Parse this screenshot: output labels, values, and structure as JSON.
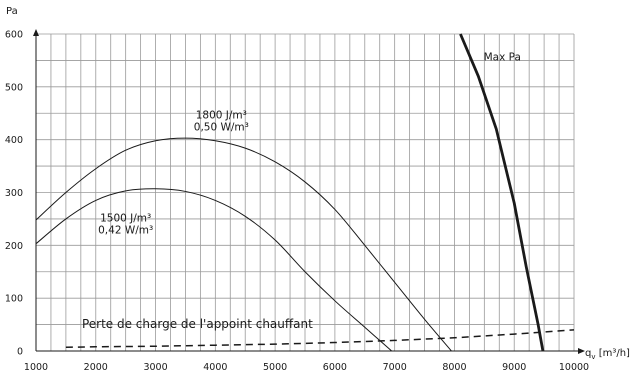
{
  "chart_data": {
    "type": "line",
    "title": "",
    "xlabel": "qv [m³/h]",
    "ylabel": "Pa",
    "xlim": [
      1000,
      10000
    ],
    "ylim": [
      0,
      600
    ],
    "x_ticks": [
      1000,
      2000,
      3000,
      4000,
      5000,
      6000,
      7000,
      8000,
      9000,
      10000
    ],
    "y_ticks": [
      0,
      100,
      200,
      300,
      400,
      500,
      600
    ],
    "grid": true,
    "series": [
      {
        "name": "",
        "style": "solid-thin",
        "x": [
          1000,
          1500,
          2000,
          2500,
          3000,
          3500,
          4000,
          4500,
          5000,
          5500,
          6000,
          6500,
          7000,
          7500,
          7950
        ],
        "y": [
          248,
          300,
          345,
          380,
          398,
          403,
          398,
          384,
          358,
          320,
          268,
          200,
          130,
          60,
          0
        ]
      },
      {
        "name": "",
        "style": "solid-thin",
        "x": [
          1000,
          1500,
          2000,
          2500,
          3000,
          3500,
          4000,
          4500,
          5000,
          5500,
          6000,
          6500,
          6950
        ],
        "y": [
          203,
          250,
          285,
          303,
          307,
          302,
          285,
          255,
          210,
          150,
          95,
          45,
          0
        ]
      },
      {
        "name": "Max Pa",
        "style": "solid-thick",
        "x": [
          8100,
          8400,
          8700,
          9000,
          9200,
          9400,
          9480
        ],
        "y": [
          600,
          520,
          420,
          280,
          160,
          50,
          0
        ]
      },
      {
        "name": "Perte de charge de l'appoint chauffant",
        "style": "dashed",
        "x": [
          1500,
          2000,
          3000,
          4000,
          5000,
          6000,
          7000,
          8000,
          9000,
          10000
        ],
        "y": [
          7,
          8,
          9,
          11,
          13,
          16,
          20,
          25,
          32,
          40
        ]
      }
    ],
    "annotations": [
      {
        "lines": [
          "1800 J/m³",
          "0,50 W/m³"
        ],
        "x": 4100,
        "y": 440
      },
      {
        "lines": [
          "1500 J/m³",
          "0,42 W/m³"
        ],
        "x": 2500,
        "y": 245
      },
      {
        "lines": [
          "Max Pa"
        ],
        "x": 8800,
        "y": 550
      },
      {
        "lines": [
          "Perte de charge de l'appoint chauffant"
        ],
        "x": 3700,
        "y": 44
      }
    ]
  }
}
